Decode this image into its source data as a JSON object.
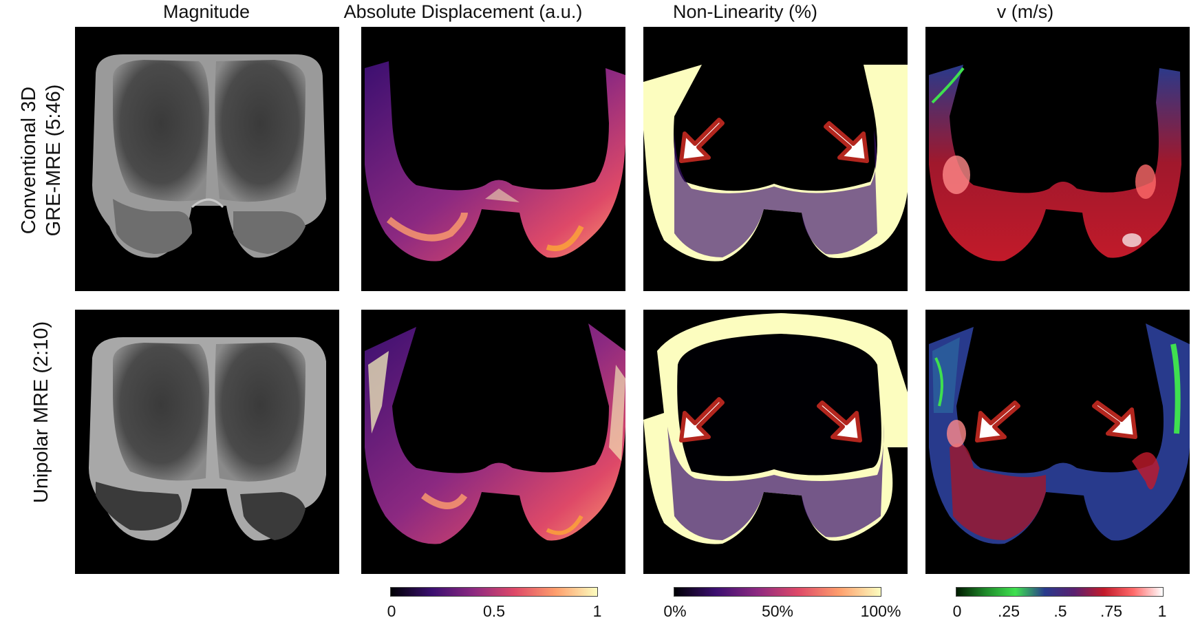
{
  "columns": {
    "magnitude": "Magnitude",
    "displacement": "Absolute Displacement (a.u.)",
    "nonlinearity": "Non-Linearity (%)",
    "velocity": "v (m/s)"
  },
  "rows": {
    "top": {
      "line1": "Conventional 3D",
      "line2": "GRE-MRE (5:46)"
    },
    "bottom": {
      "line1": "Unipolar MRE (2:10)"
    }
  },
  "colorbars": {
    "displacement": {
      "ticks": [
        "0",
        "0.5",
        "1"
      ],
      "colors": [
        "#000004",
        "#3b0f70",
        "#8c2981",
        "#de4968",
        "#fe9f6d",
        "#fcfdbf"
      ]
    },
    "nonlinearity": {
      "ticks": [
        "0%",
        "50%",
        "100%"
      ],
      "colors": [
        "#000004",
        "#3b0f70",
        "#8c2981",
        "#de4968",
        "#fe9f6d",
        "#fcfdbf"
      ]
    },
    "velocity": {
      "ticks": [
        "0",
        ".25",
        ".5",
        ".75",
        "1"
      ],
      "colors": [
        "#001a00",
        "#1f8a2a",
        "#3fe04f",
        "#283a8c",
        "#5a2070",
        "#c21a2a",
        "#ff6a6a",
        "#ffffff"
      ]
    }
  },
  "annotations": {
    "arrow_color": "#b3261e",
    "arrow_fill": "#ffffff"
  }
}
